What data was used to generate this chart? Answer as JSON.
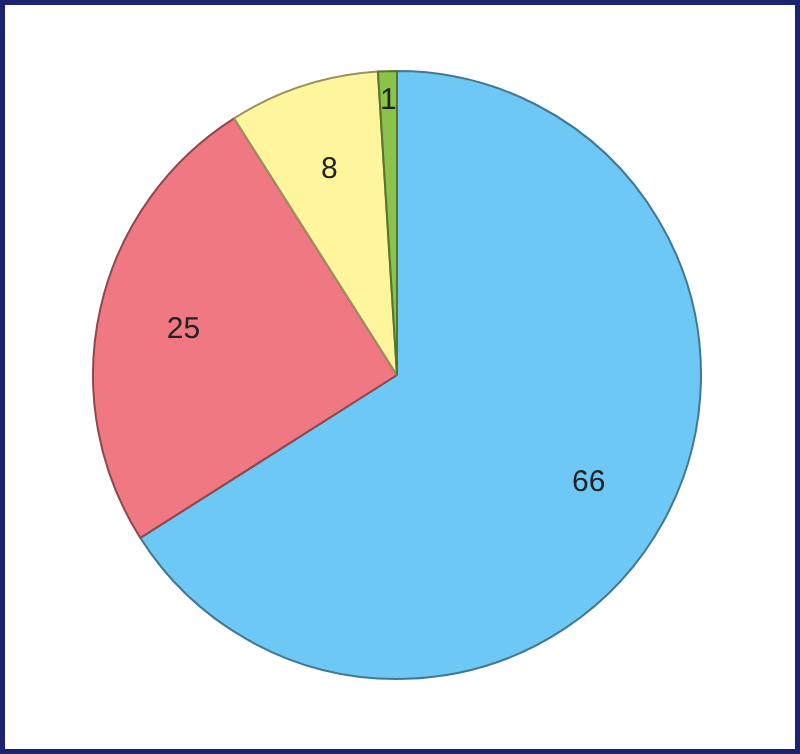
{
  "chart_data": {
    "type": "pie",
    "categories": [
      null,
      null,
      null,
      null
    ],
    "values": [
      66,
      25,
      8,
      1
    ],
    "colors": [
      "#6ec8f5",
      "#f07882",
      "#fff59d",
      "#8bc34a"
    ],
    "data_labels": true
  }
}
